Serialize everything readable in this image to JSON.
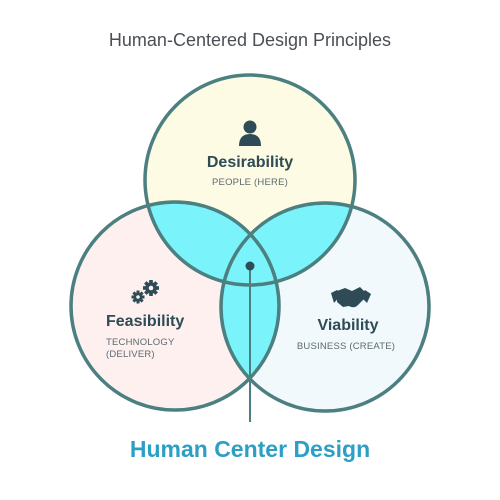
{
  "title": "Human-Centered Design Principles",
  "circles": {
    "desirability": {
      "title": "Desirability",
      "subtitle": "PEOPLE (HERE)",
      "icon": "person-icon",
      "fill": "#fdfbe3"
    },
    "feasibility": {
      "title": "Feasibility",
      "subtitle_line1": "TECHNOLOGY",
      "subtitle_line2": "(DELIVER)",
      "icon": "gears-icon",
      "fill": "#fdf0ef"
    },
    "viability": {
      "title": "Viability",
      "subtitle": "BUSINESS (CREATE)",
      "icon": "handshake-icon",
      "fill": "#f1f9fc"
    }
  },
  "footer": {
    "label": "Human Center Design",
    "color": "#2e9fc4"
  },
  "colors": {
    "outline": "#4c7f80",
    "overlap": "#7af3fb",
    "icon": "#2e4b56"
  }
}
